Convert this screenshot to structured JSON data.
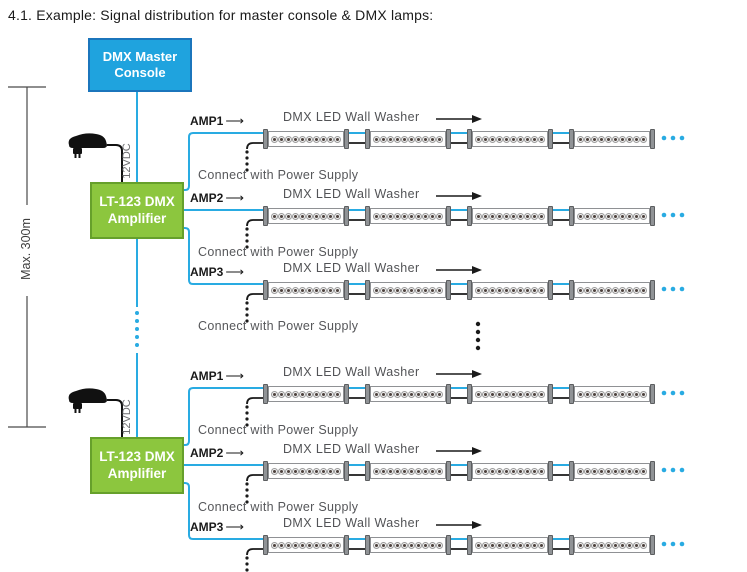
{
  "title": "4.1. Example: Signal distribution for master console & DMX lamps:",
  "console": {
    "line1": "DMX Master",
    "line2": "Console"
  },
  "amplifier": {
    "line1": "LT-123 DMX",
    "line2": "Amplifier"
  },
  "annotations": {
    "max_distance": "Max. 300m",
    "psu_voltage": "12VDC"
  },
  "icons": {
    "arrow_right": "⟶"
  },
  "colors": {
    "accent_cyan": "#29ABE2",
    "console_fill": "#1FA3DE",
    "console_border": "#1B75BC",
    "amp_fill": "#8CC63E",
    "amp_border": "#66A02B",
    "wire_black": "#1a1a1a",
    "label_gray": "#56575a"
  },
  "strip": {
    "segments_per_strip": 4,
    "leds_per_segment": 10
  },
  "rows": [
    {
      "amp_label": "AMP1",
      "washer_label": "DMX LED Wall Washer",
      "connect_label": "Connect with Power Supply"
    },
    {
      "amp_label": "AMP2",
      "washer_label": "DMX LED Wall Washer",
      "connect_label": "Connect with Power Supply"
    },
    {
      "amp_label": "AMP3",
      "washer_label": "DMX LED Wall Washer",
      "connect_label": "Connect with Power Supply"
    },
    {
      "amp_label": "AMP1",
      "washer_label": "DMX LED Wall Washer",
      "connect_label": "Connect with Power Supply"
    },
    {
      "amp_label": "AMP2",
      "washer_label": "DMX LED Wall Washer",
      "connect_label": "Connect with Power Supply"
    },
    {
      "amp_label": "AMP3",
      "washer_label": "DMX LED Wall Washer",
      "connect_label": ""
    }
  ]
}
